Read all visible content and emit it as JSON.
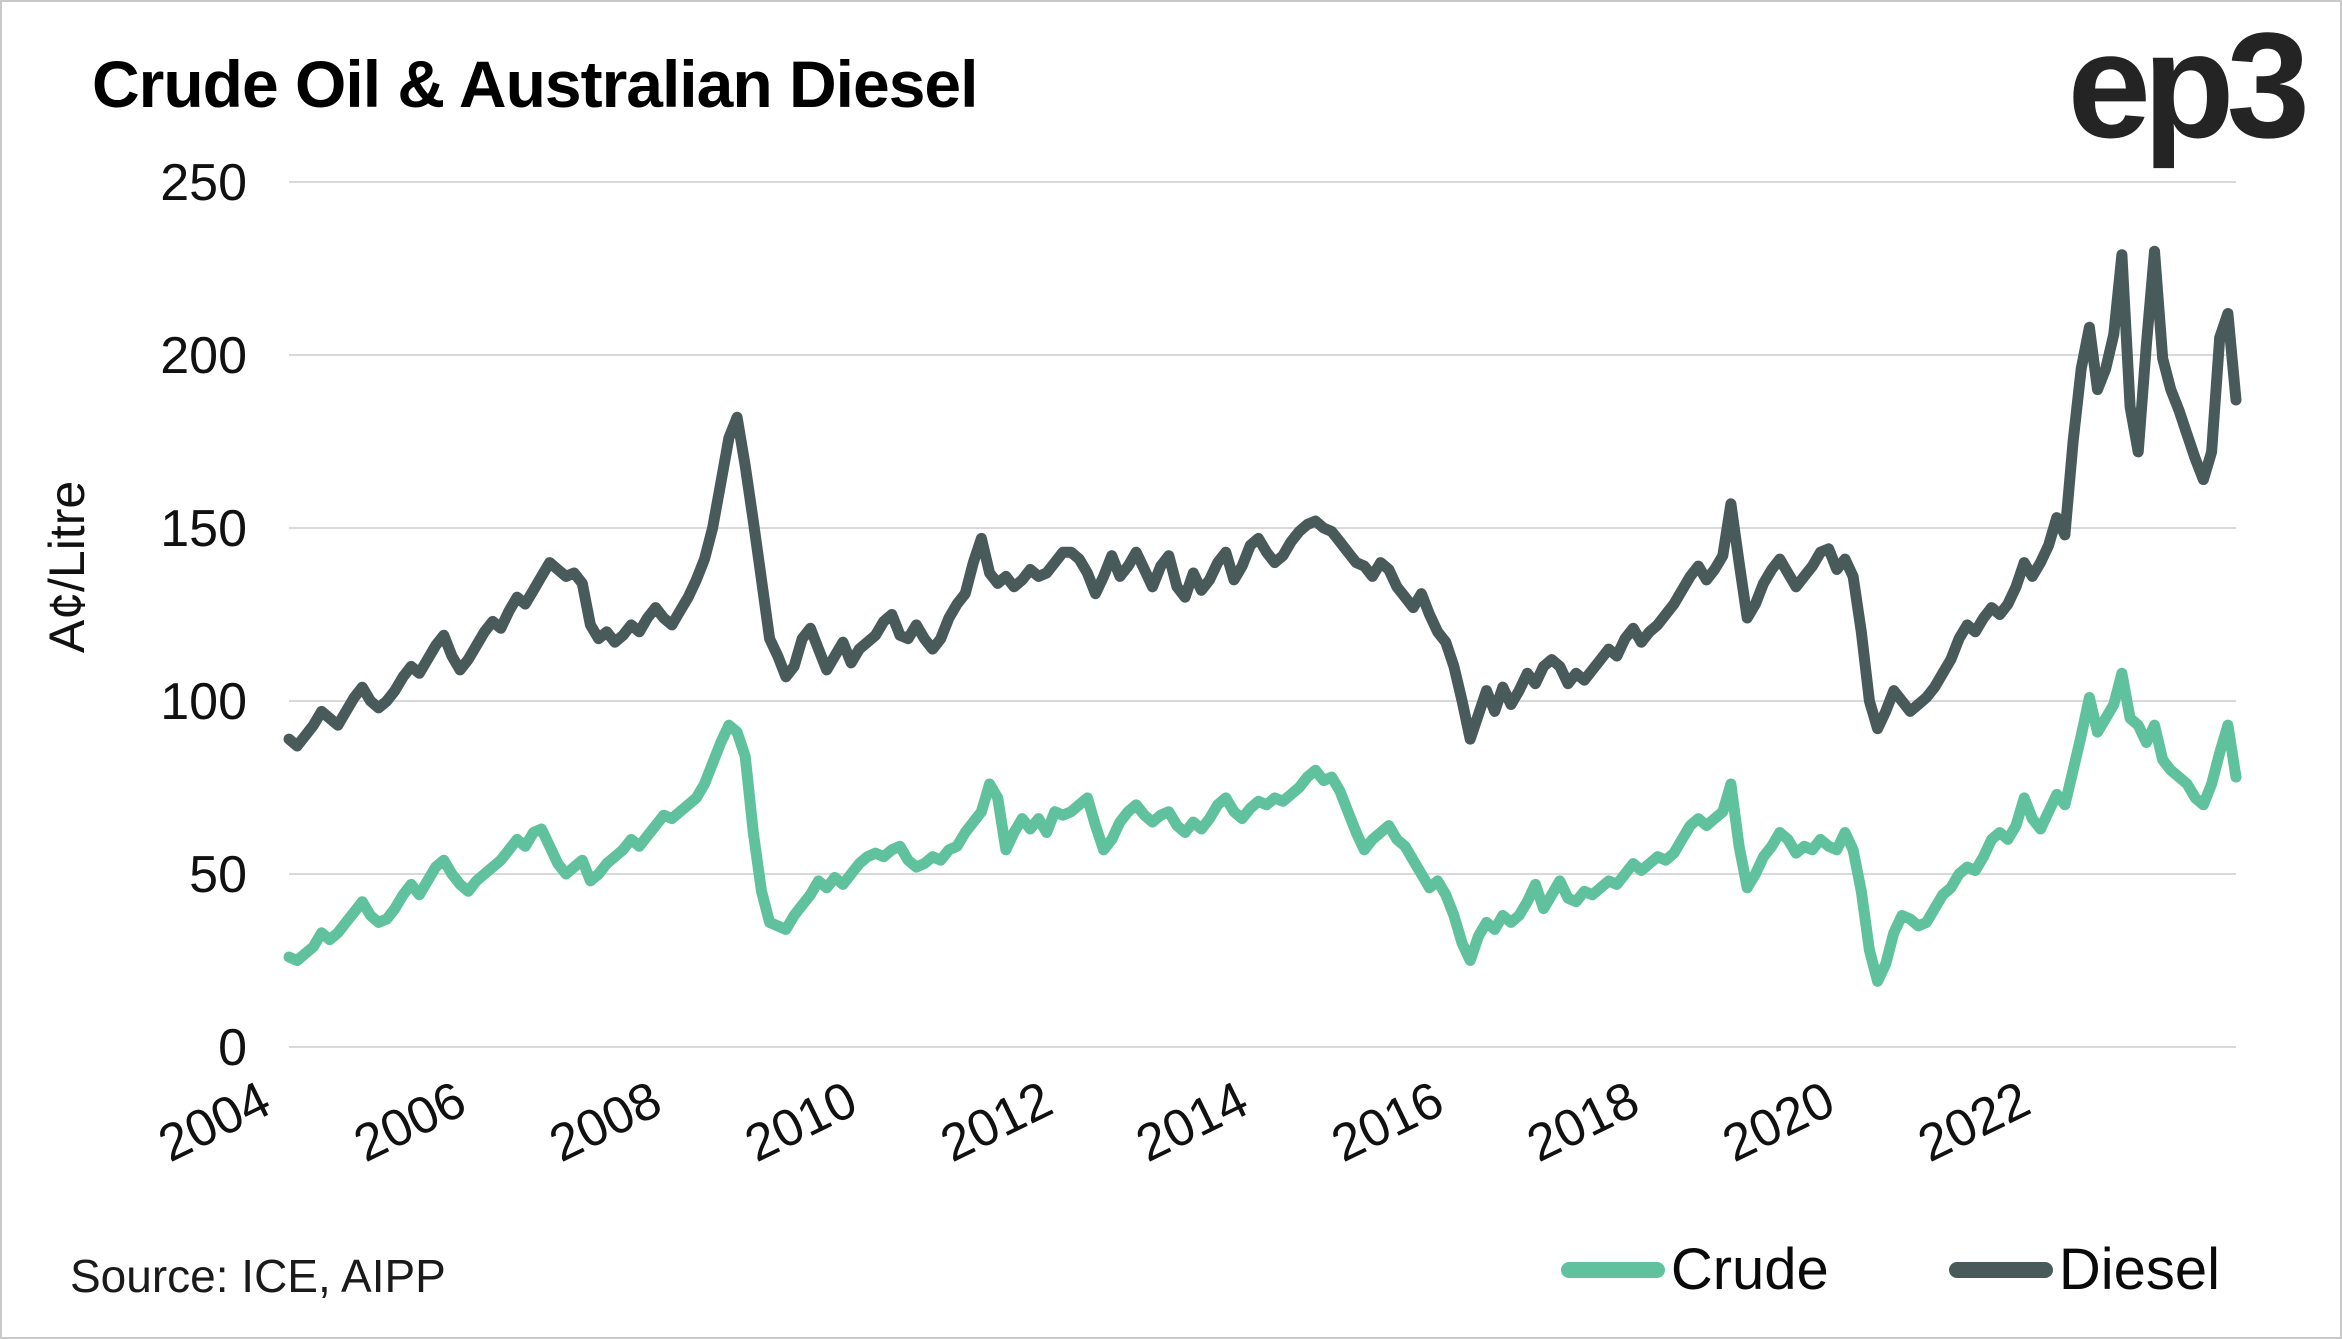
{
  "header": {
    "title": "Crude Oil & Australian Diesel",
    "logo": "ep3"
  },
  "footer": {
    "source": "Source: ICE, AIPP"
  },
  "legend": [
    {
      "label": "Crude",
      "color": "#5fc19d"
    },
    {
      "label": "Diesel",
      "color": "#495a5b"
    }
  ],
  "colors": {
    "crude": "#5fc19d",
    "diesel": "#495a5b",
    "gridline": "#d9d9d9",
    "text": "#111111",
    "border": "#c9c9c9"
  },
  "chart_data": {
    "type": "line",
    "title": "Crude Oil & Australian Diesel",
    "xlabel": "",
    "ylabel": "A¢/Litre",
    "ylim": [
      0,
      250
    ],
    "yticks": [
      0,
      50,
      100,
      150,
      200,
      250
    ],
    "xticks": [
      2004,
      2006,
      2008,
      2010,
      2012,
      2014,
      2016,
      2018,
      2020,
      2022
    ],
    "x_start_year": 2004,
    "x_step": "monthly",
    "grid": "horizontal",
    "legend_position": "bottom-right",
    "series": [
      {
        "name": "Crude",
        "color": "#5fc19d",
        "values": [
          26,
          25,
          27,
          29,
          33,
          31,
          33,
          36,
          39,
          42,
          38,
          36,
          37,
          40,
          44,
          47,
          44,
          48,
          52,
          54,
          50,
          47,
          45,
          48,
          50,
          52,
          54,
          57,
          60,
          58,
          62,
          63,
          58,
          53,
          50,
          52,
          54,
          48,
          50,
          53,
          55,
          57,
          60,
          58,
          61,
          64,
          67,
          66,
          68,
          70,
          72,
          76,
          82,
          88,
          93,
          91,
          84,
          62,
          45,
          36,
          35,
          34,
          38,
          41,
          44,
          48,
          46,
          49,
          47,
          50,
          53,
          55,
          56,
          55,
          57,
          58,
          54,
          52,
          53,
          55,
          54,
          57,
          58,
          62,
          65,
          68,
          76,
          72,
          57,
          62,
          66,
          63,
          66,
          62,
          68,
          67,
          68,
          70,
          72,
          64,
          57,
          60,
          65,
          68,
          70,
          67,
          65,
          67,
          68,
          64,
          62,
          65,
          63,
          66,
          70,
          72,
          68,
          66,
          69,
          71,
          70,
          72,
          71,
          73,
          75,
          78,
          80,
          77,
          78,
          74,
          68,
          62,
          57,
          60,
          62,
          64,
          60,
          58,
          54,
          50,
          46,
          48,
          44,
          38,
          30,
          25,
          32,
          36,
          34,
          38,
          36,
          38,
          42,
          47,
          40,
          44,
          48,
          43,
          42,
          45,
          44,
          46,
          48,
          47,
          50,
          53,
          51,
          53,
          55,
          54,
          56,
          60,
          64,
          66,
          64,
          66,
          68,
          76,
          58,
          46,
          50,
          55,
          58,
          62,
          60,
          56,
          58,
          57,
          60,
          58,
          57,
          62,
          57,
          45,
          28,
          19,
          24,
          33,
          38,
          37,
          35,
          36,
          40,
          44,
          46,
          50,
          52,
          51,
          55,
          60,
          62,
          60,
          64,
          72,
          66,
          63,
          68,
          73,
          70,
          80,
          90,
          101,
          91,
          95,
          99,
          108,
          95,
          93,
          88,
          93,
          83,
          80,
          78,
          76,
          72,
          70,
          76,
          85,
          93,
          78
        ]
      },
      {
        "name": "Diesel",
        "color": "#495a5b",
        "values": [
          89,
          87,
          90,
          93,
          97,
          95,
          93,
          97,
          101,
          104,
          100,
          98,
          100,
          103,
          107,
          110,
          108,
          112,
          116,
          119,
          113,
          109,
          112,
          116,
          120,
          123,
          121,
          126,
          130,
          128,
          132,
          136,
          140,
          138,
          136,
          137,
          134,
          122,
          118,
          120,
          117,
          119,
          122,
          120,
          124,
          127,
          124,
          122,
          126,
          130,
          135,
          141,
          150,
          163,
          176,
          182,
          168,
          152,
          135,
          118,
          113,
          107,
          110,
          118,
          121,
          115,
          109,
          113,
          117,
          111,
          115,
          117,
          119,
          123,
          125,
          119,
          118,
          122,
          118,
          115,
          118,
          124,
          128,
          131,
          140,
          147,
          137,
          134,
          136,
          133,
          135,
          138,
          136,
          137,
          140,
          143,
          143,
          141,
          137,
          131,
          136,
          142,
          136,
          139,
          143,
          138,
          133,
          139,
          142,
          133,
          130,
          137,
          132,
          135,
          140,
          143,
          135,
          139,
          145,
          147,
          143,
          140,
          142,
          146,
          149,
          151,
          152,
          150,
          149,
          146,
          143,
          140,
          139,
          136,
          140,
          138,
          133,
          130,
          127,
          131,
          125,
          120,
          117,
          110,
          100,
          89,
          96,
          103,
          97,
          104,
          99,
          103,
          108,
          105,
          110,
          112,
          110,
          105,
          108,
          106,
          109,
          112,
          115,
          113,
          118,
          121,
          117,
          120,
          122,
          125,
          128,
          132,
          136,
          139,
          135,
          138,
          142,
          157,
          140,
          124,
          128,
          134,
          138,
          141,
          137,
          133,
          136,
          139,
          143,
          144,
          138,
          141,
          136,
          120,
          100,
          92,
          97,
          103,
          100,
          97,
          99,
          101,
          104,
          108,
          112,
          118,
          122,
          120,
          124,
          127,
          125,
          128,
          133,
          140,
          136,
          140,
          145,
          153,
          148,
          175,
          196,
          208,
          190,
          196,
          206,
          229,
          185,
          172,
          203,
          230,
          199,
          190,
          184,
          177,
          170,
          164,
          172,
          205,
          212,
          187
        ]
      }
    ]
  }
}
